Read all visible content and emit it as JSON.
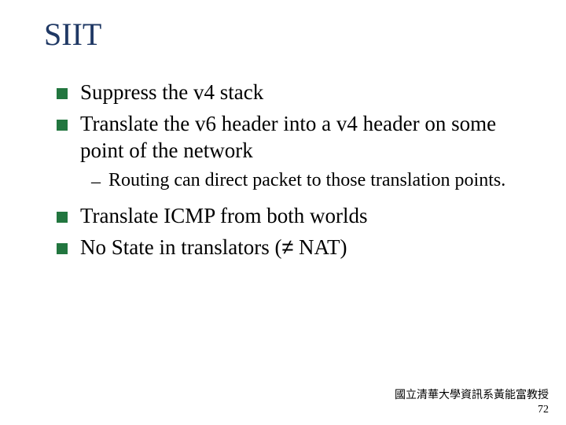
{
  "title": "SIIT",
  "bullets": {
    "b1": "Suppress the v4 stack",
    "b2": "Translate the v6 header into a v4 header on some point of the network",
    "b2sub1": "Routing can direct packet to those translation points.",
    "b3": "Translate ICMP from both worlds",
    "b4_pre": "No State in translators (",
    "b4_sym": "≠",
    "b4_post": " NAT)"
  },
  "footer": {
    "credit": "國立清華大學資訊系黃能富教授",
    "page": "72"
  },
  "colors": {
    "title": "#1f3864",
    "bullet_square": "#22763f",
    "text": "#000000",
    "background": "#ffffff"
  },
  "typography": {
    "title_fontsize": 40,
    "body_fontsize": 27,
    "sub_fontsize": 24,
    "footer_fontsize": 14,
    "family": "Times New Roman"
  }
}
